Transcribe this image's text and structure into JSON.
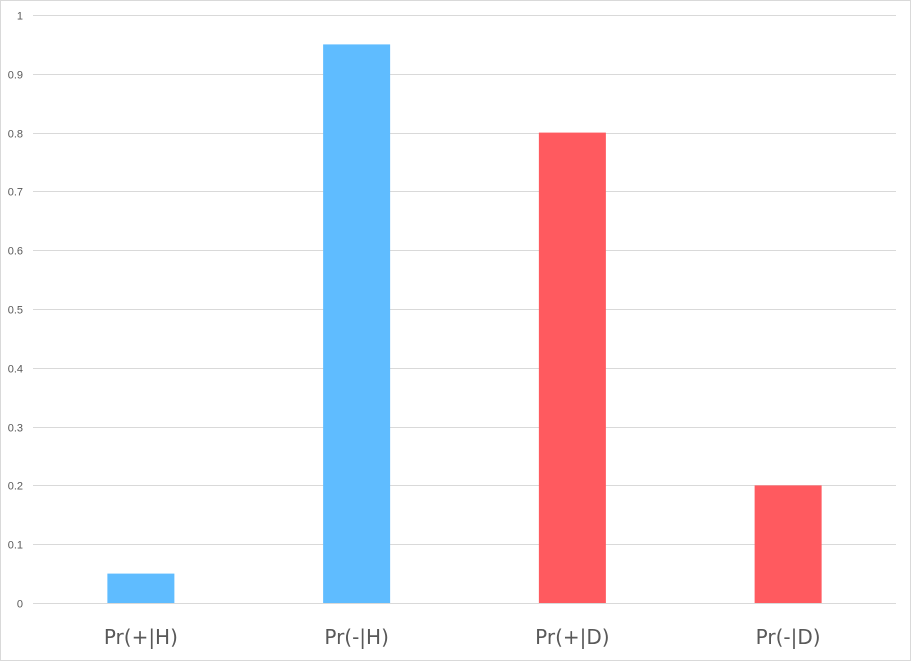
{
  "chart_data": {
    "type": "bar",
    "title": "",
    "xlabel": "",
    "ylabel": "",
    "categories": [
      "Pr(+|H)",
      "Pr(-|H)",
      "Pr(+|D)",
      "Pr(-|D)"
    ],
    "values": [
      0.05,
      0.95,
      0.8,
      0.2
    ],
    "bar_colors": [
      "#5fbcff",
      "#5fbcff",
      "#ff5a5f",
      "#ff5a5f"
    ],
    "ylim": [
      0,
      1
    ],
    "y_ticks": [
      0,
      0.1,
      0.2,
      0.3,
      0.4,
      0.5,
      0.6,
      0.7,
      0.8,
      0.9,
      1
    ],
    "y_tick_labels": [
      "0",
      "0.1",
      "0.2",
      "0.3",
      "0.4",
      "0.5",
      "0.6",
      "0.7",
      "0.8",
      "0.9",
      "1"
    ],
    "grid": true,
    "legend": "none",
    "gridline_color": "#d9d9d9",
    "text_color": "#595959"
  }
}
